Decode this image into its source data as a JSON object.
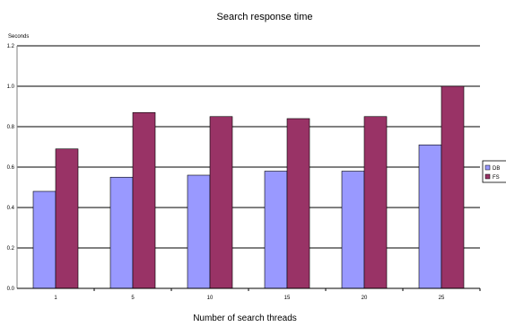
{
  "chart_data": {
    "type": "bar",
    "title": "Search response time",
    "ylabel": "Seconds",
    "xlabel": "Number of search threads",
    "categories": [
      "1",
      "5",
      "10",
      "15",
      "20",
      "25"
    ],
    "series": [
      {
        "name": "DB",
        "values": [
          0.48,
          0.55,
          0.56,
          0.58,
          0.58,
          0.71
        ]
      },
      {
        "name": "FS",
        "values": [
          0.69,
          0.87,
          0.85,
          0.84,
          0.85,
          1.0
        ]
      }
    ],
    "ylim": [
      0,
      1.2
    ],
    "yticks": [
      "0.0",
      "0.2",
      "0.4",
      "0.6",
      "0.8",
      "1.0",
      "1.2"
    ],
    "grid": true,
    "legend_position": "right",
    "colors": {
      "DB": "#9999ff",
      "FS": "#993366",
      "grid": "#000000",
      "frame": "#808080"
    }
  }
}
